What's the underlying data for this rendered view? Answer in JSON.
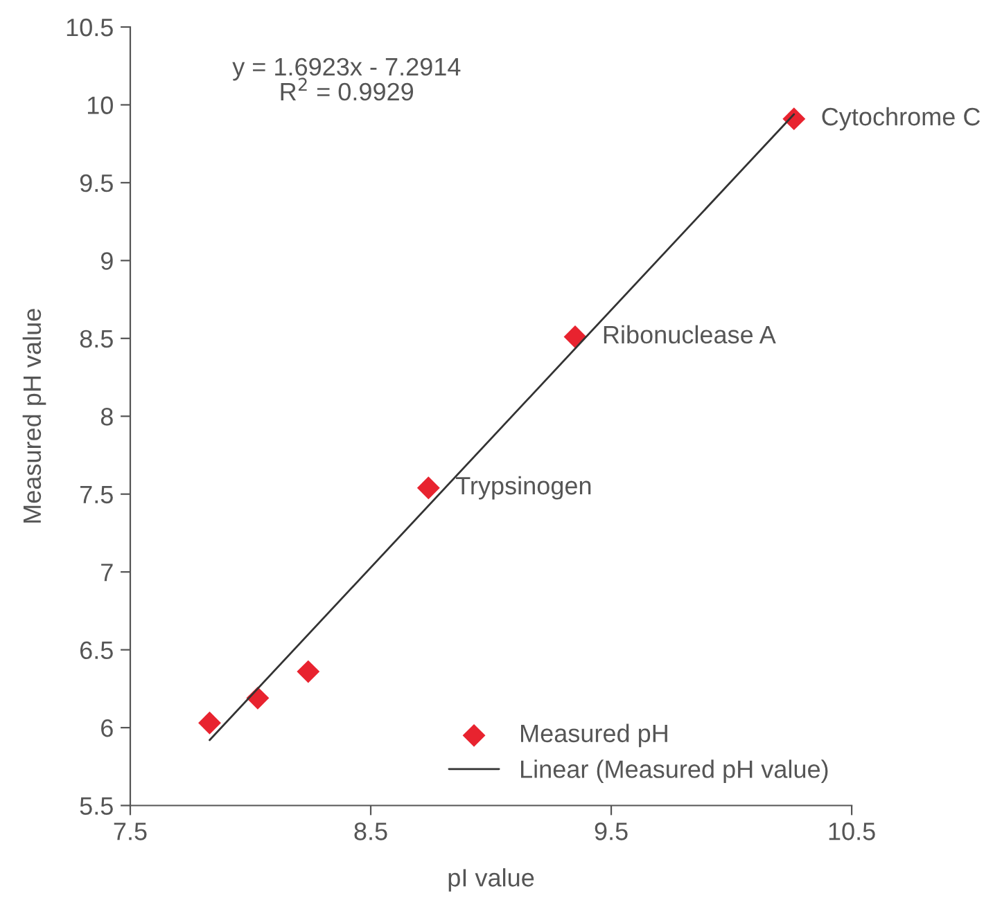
{
  "chart_data": {
    "type": "scatter",
    "xlabel": "pI value",
    "ylabel": "Measured pH value",
    "xlim": [
      7.5,
      10.5
    ],
    "xticks": [
      7.5,
      8.5,
      9.5,
      10.5
    ],
    "ylim": [
      5.5,
      10.5
    ],
    "yticks": [
      5.5,
      6,
      6.5,
      7,
      7.5,
      8,
      8.5,
      9,
      9.5,
      10,
      10.5
    ],
    "series": [
      {
        "name": "Measured pH",
        "color": "#e8232f",
        "marker": "diamond",
        "x": [
          7.83,
          8.03,
          8.24,
          8.74,
          9.35,
          10.26
        ],
        "values": [
          6.03,
          6.19,
          6.36,
          7.54,
          8.51,
          9.91
        ]
      },
      {
        "name": "Linear (Measured pH value)",
        "type": "line",
        "color": "#333333",
        "marker": "none",
        "line_style": "solid",
        "x": [
          7.83,
          10.26
        ],
        "values": [
          5.92,
          9.94
        ]
      }
    ],
    "annotations": [
      "y = 1.6923x - 7.2914\nR$^{2}$ = 0.9929",
      {
        "text": "Trypsinogen",
        "x": 8.74,
        "y": 7.54
      },
      {
        "text": "Ribonuclease A",
        "x": 9.35,
        "y": 8.51
      },
      {
        "text": "Cytochrome C",
        "x": 10.26,
        "y": 9.91
      }
    ],
    "grid": false,
    "legend": "bottom right"
  }
}
